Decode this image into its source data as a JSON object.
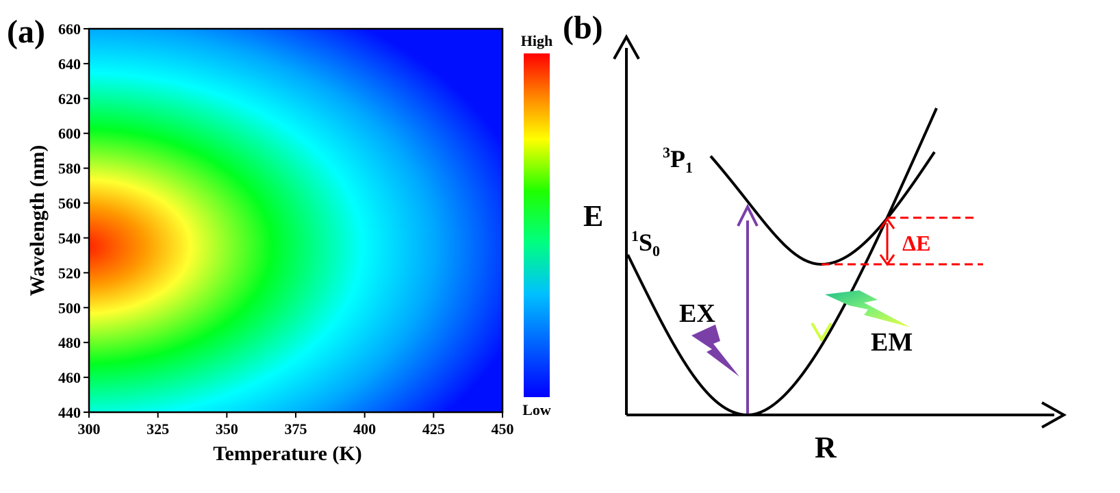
{
  "panel_a": {
    "label": "(a)",
    "chart_data": {
      "type": "heatmap",
      "xlabel": "Temperature (K)",
      "ylabel": "Wavelength (nm)",
      "xlim": [
        300,
        450
      ],
      "ylim": [
        440,
        660
      ],
      "x_ticks": [
        "300",
        "325",
        "350",
        "375",
        "400",
        "425",
        "450"
      ],
      "y_ticks": [
        "440",
        "460",
        "480",
        "500",
        "520",
        "540",
        "560",
        "580",
        "600",
        "620",
        "640",
        "660"
      ],
      "peak": {
        "temperature": 300,
        "wavelength": 540
      },
      "colorbar": {
        "high": "High",
        "low": "Low",
        "colors": [
          "#0000ff",
          "#00b4ff",
          "#00ffff",
          "#00ff00",
          "#ffff00",
          "#ff8000",
          "#ff0000"
        ]
      }
    }
  },
  "panel_b": {
    "label": "(b)",
    "axis_y": "E",
    "axis_x": "R",
    "state_excited": "P",
    "state_excited_pre": "3",
    "state_excited_sub": "1",
    "state_ground": "S",
    "state_ground_pre": "1",
    "state_ground_sub": "0",
    "excitation": "EX",
    "emission": "EM",
    "gap": "ΔE",
    "colors": {
      "excitation": "#7b3fa8",
      "gap": "#ff0000",
      "curve": "#000000"
    }
  }
}
